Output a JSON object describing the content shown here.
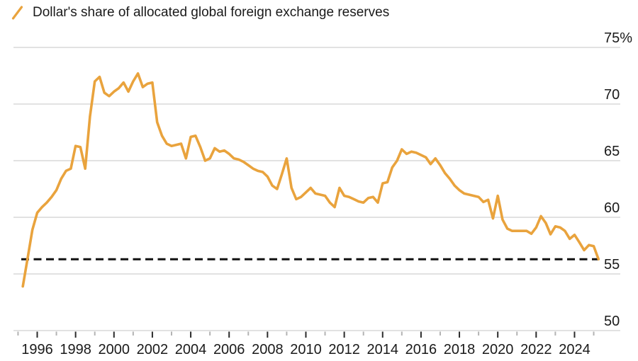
{
  "legend": {
    "label": "Dollar's share of allocated global foreign exchange reserves",
    "swatch_color": "#E9A33D"
  },
  "colors": {
    "line": "#E9A33D",
    "grid": "#D9D9D9",
    "tick_major": "#2B2B2B",
    "tick_minor": "#B3B3B3",
    "text": "#1A1A1A",
    "reference_line": "#111111",
    "background": "#FFFFFF"
  },
  "chart_data": {
    "type": "line",
    "title": "Dollar's share of allocated global foreign exchange reserves",
    "unit": "percent of allocated reserves",
    "x": {
      "start": 1995.25,
      "step": 0.25,
      "end": 2025.25,
      "frequency": "quarterly"
    },
    "values": [
      53.9,
      56.4,
      58.9,
      60.4,
      60.9,
      61.3,
      61.8,
      62.4,
      63.4,
      64.1,
      64.3,
      66.3,
      66.2,
      64.3,
      68.9,
      72.0,
      72.4,
      71.0,
      70.7,
      71.1,
      71.4,
      71.9,
      71.1,
      72.0,
      72.7,
      71.5,
      71.8,
      71.9,
      68.4,
      67.2,
      66.5,
      66.3,
      66.4,
      66.5,
      65.2,
      67.1,
      67.2,
      66.2,
      65.0,
      65.2,
      66.1,
      65.8,
      65.9,
      65.6,
      65.2,
      65.1,
      64.9,
      64.6,
      64.3,
      64.1,
      64.0,
      63.6,
      62.8,
      62.5,
      63.8,
      65.2,
      62.6,
      61.6,
      61.8,
      62.2,
      62.6,
      62.1,
      62.0,
      61.9,
      61.3,
      60.9,
      62.6,
      61.9,
      61.8,
      61.6,
      61.4,
      61.3,
      61.7,
      61.8,
      61.3,
      63.0,
      63.1,
      64.4,
      65.0,
      66.0,
      65.6,
      65.8,
      65.7,
      65.5,
      65.3,
      64.7,
      65.2,
      64.6,
      63.9,
      63.4,
      62.8,
      62.4,
      62.1,
      62.0,
      61.9,
      61.8,
      61.35,
      61.55,
      59.9,
      61.9,
      59.8,
      59.0,
      58.8,
      58.8,
      58.8,
      58.8,
      58.55,
      59.1,
      60.1,
      59.5,
      58.5,
      59.2,
      59.1,
      58.8,
      58.1,
      58.45,
      57.8,
      57.1,
      57.55,
      57.45,
      56.3
    ],
    "y_axis": {
      "side": "right",
      "range": [
        50,
        75
      ],
      "ticks": [
        {
          "value": 75,
          "label": "75%"
        },
        {
          "value": 70,
          "label": "70"
        },
        {
          "value": 65,
          "label": "65"
        },
        {
          "value": 60,
          "label": "60"
        },
        {
          "value": 55,
          "label": "55"
        },
        {
          "value": 50,
          "label": "50"
        }
      ]
    },
    "x_axis": {
      "major_ticks": [
        {
          "year": 1996,
          "label": "1996"
        },
        {
          "year": 1998,
          "label": "1998"
        },
        {
          "year": 2000,
          "label": "2000"
        },
        {
          "year": 2002,
          "label": "2002"
        },
        {
          "year": 2004,
          "label": "2004"
        },
        {
          "year": 2006,
          "label": "2006"
        },
        {
          "year": 2008,
          "label": "2008"
        },
        {
          "year": 2010,
          "label": "2010"
        },
        {
          "year": 2012,
          "label": "2012"
        },
        {
          "year": 2014,
          "label": "2014"
        },
        {
          "year": 2016,
          "label": "2016"
        },
        {
          "year": 2018,
          "label": "2018"
        },
        {
          "year": 2020,
          "label": "2020"
        },
        {
          "year": 2022,
          "label": "2022"
        },
        {
          "year": 2024,
          "label": "2024"
        }
      ],
      "minor_tick_years": [
        1995,
        1997,
        1999,
        2001,
        2003,
        2005,
        2007,
        2009,
        2011,
        2013,
        2015,
        2017,
        2019,
        2021,
        2023,
        2025
      ]
    },
    "reference_line": {
      "value": 56.3,
      "style": "dashed",
      "color": "#111111"
    },
    "grid": "horizontal-only",
    "legend_position": "top-left"
  }
}
